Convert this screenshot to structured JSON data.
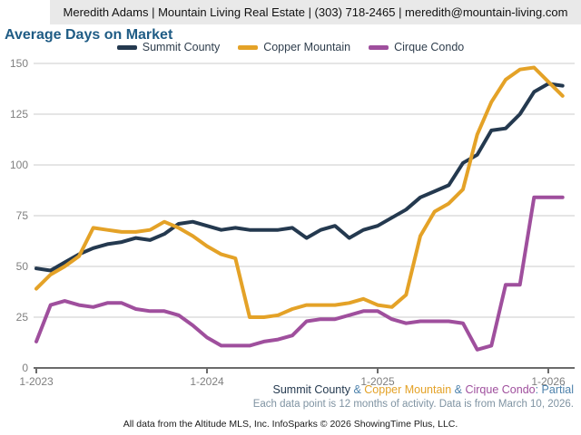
{
  "header": {
    "contact_line": "Meredith Adams | Mountain Living Real Estate | (303) 718-2465 | meredith@mountain-living.com"
  },
  "title": "Average Days on Market",
  "colors": {
    "summit": "#24394f",
    "copper": "#e4a227",
    "cirque": "#9f4f9d",
    "accent_blue": "#4d82ac",
    "title_blue": "#1f5c85",
    "axis_text": "#7f7f7f",
    "gridline": "#cbcbcb",
    "axis_line": "#6b6b6b"
  },
  "chart_data": {
    "type": "line",
    "title": "Average Days on Market",
    "xlabel": "",
    "ylabel": "",
    "ylim": [
      0,
      150
    ],
    "yticks": [
      0,
      25,
      50,
      75,
      100,
      125,
      150
    ],
    "grid": true,
    "legend_position": "top",
    "x_tick_labels": [
      "1-2023",
      "1-2024",
      "1-2025",
      "1-2026"
    ],
    "x_tick_indices": [
      0,
      12,
      24,
      36
    ],
    "months": [
      "1-2023",
      "2-2023",
      "3-2023",
      "4-2023",
      "5-2023",
      "6-2023",
      "7-2023",
      "8-2023",
      "9-2023",
      "10-2023",
      "11-2023",
      "12-2023",
      "1-2024",
      "2-2024",
      "3-2024",
      "4-2024",
      "5-2024",
      "6-2024",
      "7-2024",
      "8-2024",
      "9-2024",
      "10-2024",
      "11-2024",
      "12-2024",
      "1-2025",
      "2-2025",
      "3-2025",
      "4-2025",
      "5-2025",
      "6-2025",
      "7-2025",
      "8-2025",
      "9-2025",
      "10-2025",
      "11-2025",
      "12-2025",
      "1-2026",
      "2-2026"
    ],
    "series": [
      {
        "name": "Summit County",
        "color": "#24394f",
        "values": [
          49,
          48,
          52,
          56,
          59,
          61,
          62,
          64,
          63,
          66,
          71,
          72,
          70,
          68,
          69,
          68,
          68,
          68,
          69,
          64,
          68,
          70,
          64,
          68,
          70,
          74,
          78,
          84,
          87,
          90,
          101,
          105,
          117,
          118,
          125,
          136,
          140,
          139
        ]
      },
      {
        "name": "Copper Mountain",
        "color": "#e4a227",
        "values": [
          39,
          46,
          50,
          55,
          69,
          68,
          67,
          67,
          68,
          72,
          69,
          65,
          60,
          56,
          54,
          25,
          25,
          26,
          29,
          31,
          31,
          31,
          32,
          34,
          31,
          30,
          36,
          65,
          77,
          81,
          88,
          115,
          131,
          142,
          147,
          148,
          141,
          134
        ]
      },
      {
        "name": "Cirque Condo",
        "color": "#9f4f9d",
        "values": [
          13,
          31,
          33,
          31,
          30,
          32,
          32,
          29,
          28,
          28,
          26,
          21,
          15,
          11,
          11,
          11,
          13,
          14,
          16,
          23,
          24,
          24,
          26,
          28,
          28,
          24,
          22,
          23,
          23,
          23,
          22,
          9,
          11,
          41,
          41,
          84,
          84,
          84
        ]
      }
    ]
  },
  "footnotes": {
    "series_note": {
      "name1": "Summit County",
      "amp1": " & ",
      "name2": "Copper Mountain",
      "amp2": " & ",
      "name3": "Cirque Condo",
      "partial": ": Partial"
    },
    "data_note": "Each data point is 12 months of activity. Data is from March 10, 2026."
  },
  "footer": "All data from the Altitude MLS, Inc. InfoSparks © 2026 ShowingTime Plus, LLC."
}
